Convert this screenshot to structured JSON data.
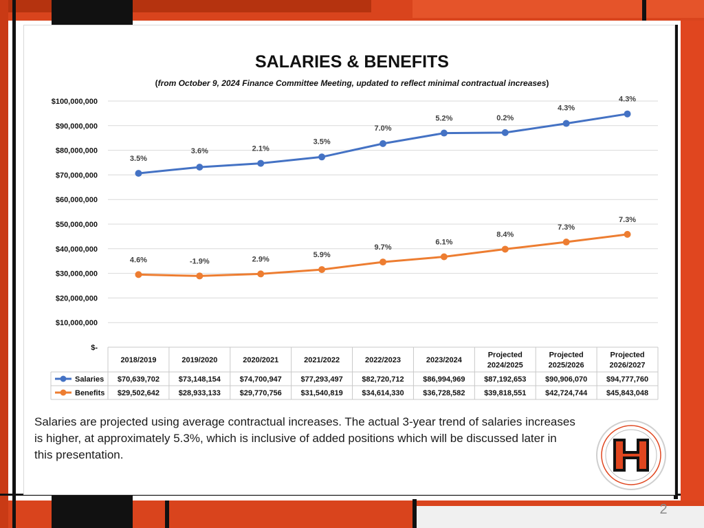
{
  "slide": {
    "caption": "Salaries are projected using average contractual increases. The actual 3-year trend of salaries increases is higher, at approximately 5.3%, which is inclusive of added positions which will be discussed later in this presentation.",
    "page_number": "2",
    "accent_color": "#e0461f",
    "dark_color": "#111111"
  },
  "chart_data": {
    "type": "line",
    "title": "SALARIES & BENEFITS",
    "subtitle_open": "(",
    "subtitle": "from October 9, 2024 Finance Committee Meeting, updated to reflect minimal contractual increases",
    "subtitle_close": ")",
    "categories": [
      [
        "2018/2019"
      ],
      [
        "2019/2020"
      ],
      [
        "2020/2021"
      ],
      [
        "2021/2022"
      ],
      [
        "2022/2023"
      ],
      [
        "2023/2024"
      ],
      [
        "Projected",
        "2024/2025"
      ],
      [
        "Projected",
        "2025/2026"
      ],
      [
        "Projected",
        "2026/2027"
      ]
    ],
    "ylim": [
      0,
      100000000
    ],
    "yticks": [
      0,
      10000000,
      20000000,
      30000000,
      40000000,
      50000000,
      60000000,
      70000000,
      80000000,
      90000000,
      100000000
    ],
    "ytick_labels": [
      "$-",
      "$10,000,000",
      "$20,000,000",
      "$30,000,000",
      "$40,000,000",
      "$50,000,000",
      "$60,000,000",
      "$70,000,000",
      "$80,000,000",
      "$90,000,000",
      "$100,000,000"
    ],
    "grid": true,
    "legend": "data-table",
    "series": [
      {
        "name": "Salaries",
        "color": "#4472c4",
        "values": [
          70639702,
          73148154,
          74700947,
          77293497,
          82720712,
          86994969,
          87192653,
          90906070,
          94777760
        ],
        "table_values": [
          "$70,639,702",
          "$73,148,154",
          "$74,700,947",
          "$77,293,497",
          "$82,720,712",
          "$86,994,969",
          "$87,192,653",
          "$90,906,070",
          "$94,777,760"
        ],
        "point_labels": [
          "3.5%",
          "3.6%",
          "2.1%",
          "3.5%",
          "7.0%",
          "5.2%",
          "0.2%",
          "4.3%",
          "4.3%"
        ]
      },
      {
        "name": "Benefits",
        "color": "#ed7d31",
        "values": [
          29502642,
          28933133,
          29770756,
          31540819,
          34614330,
          36728582,
          39818551,
          42724744,
          45843048
        ],
        "table_values": [
          "$29,502,642",
          "$28,933,133",
          "$29,770,756",
          "$31,540,819",
          "$34,614,330",
          "$36,728,582",
          "$39,818,551",
          "$42,724,744",
          "$45,843,048"
        ],
        "point_labels": [
          "4.6%",
          "-1.9%",
          "2.9%",
          "5.9%",
          "9.7%",
          "6.1%",
          "8.4%",
          "7.3%",
          "7.3%"
        ]
      }
    ]
  }
}
